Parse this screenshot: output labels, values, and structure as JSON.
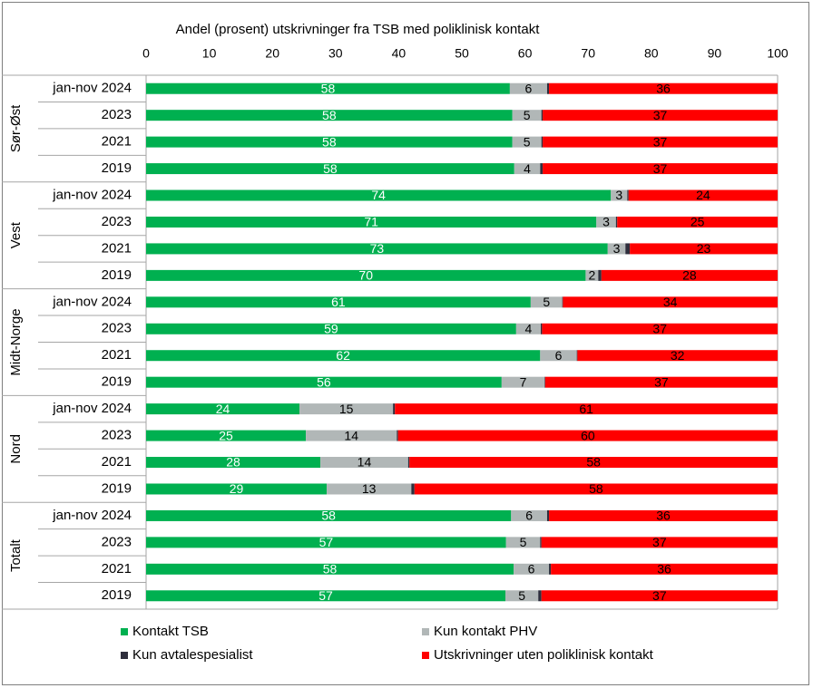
{
  "chart_data": {
    "type": "stacked-bar-horizontal",
    "title": "Andel (prosent)  utskrivninger fra TSB med poliklinisk kontakt",
    "groups": [
      "Sør-Øst",
      "Vest",
      "Midt-Norge",
      "Nord",
      "Totalt"
    ],
    "categories": [
      "jan-nov 2024",
      "2023",
      "2021",
      "2019",
      "jan-nov 2024",
      "2023",
      "2021",
      "2019",
      "jan-nov 2024",
      "2023",
      "2021",
      "2019",
      "jan-nov 2024",
      "2023",
      "2021",
      "2019",
      "jan-nov 2024",
      "2023",
      "2021",
      "2019"
    ],
    "xlim": [
      0,
      100
    ],
    "xticks": [
      0,
      10,
      20,
      30,
      40,
      50,
      60,
      70,
      80,
      90,
      100
    ],
    "grid": false,
    "series": [
      {
        "name": "Kontakt TSB",
        "color": "#00b050",
        "values": [
          57.6,
          58.0,
          58.0,
          58.3,
          73.6,
          71.3,
          73.1,
          69.6,
          60.9,
          58.6,
          62.4,
          56.3,
          24.3,
          25.3,
          27.6,
          28.6,
          57.8,
          57.0,
          58.2,
          56.9
        ],
        "value_labels": [
          "58",
          "58",
          "58",
          "58",
          "74",
          "71",
          "73",
          "70",
          "61",
          "59",
          "62",
          "56",
          "24",
          "25",
          "28",
          "29",
          "58",
          "57",
          "58",
          "57"
        ]
      },
      {
        "name": "Kun kontakt PHV",
        "color": "#b1b7b7",
        "values": [
          5.9,
          4.6,
          4.6,
          4.1,
          2.6,
          3.1,
          2.8,
          2.0,
          5.0,
          3.9,
          5.8,
          6.8,
          14.8,
          14.4,
          13.9,
          13.4,
          5.7,
          5.4,
          5.6,
          5.2
        ],
        "value_labels": [
          "6",
          "5",
          "5",
          "4",
          "3",
          "3",
          "3",
          "2",
          "5",
          "4",
          "6",
          "7",
          "15",
          "14",
          "14",
          "13",
          "6",
          "5",
          "6",
          "5"
        ]
      },
      {
        "name": "Kun avtalespesialist",
        "color": "#2e2e3c",
        "values": [
          0.3,
          0.2,
          0.2,
          0.4,
          0.2,
          0.2,
          0.7,
          0.5,
          0.1,
          0.2,
          0.1,
          0.1,
          0.3,
          0.2,
          0.2,
          0.5,
          0.3,
          0.2,
          0.3,
          0.5
        ]
      },
      {
        "name": "Utskrivninger uten poliklinisk kontakt",
        "color": "#ff0000",
        "values": [
          36.2,
          37.2,
          37.2,
          37.2,
          23.6,
          25.4,
          23.4,
          27.9,
          34.0,
          37.3,
          31.7,
          36.8,
          60.6,
          60.1,
          58.3,
          57.5,
          36.2,
          37.4,
          35.9,
          37.4
        ],
        "value_labels": [
          "36",
          "37",
          "37",
          "37",
          "24",
          "25",
          "23",
          "28",
          "34",
          "37",
          "32",
          "37",
          "61",
          "60",
          "58",
          "58",
          "36",
          "37",
          "36",
          "37"
        ]
      }
    ]
  }
}
